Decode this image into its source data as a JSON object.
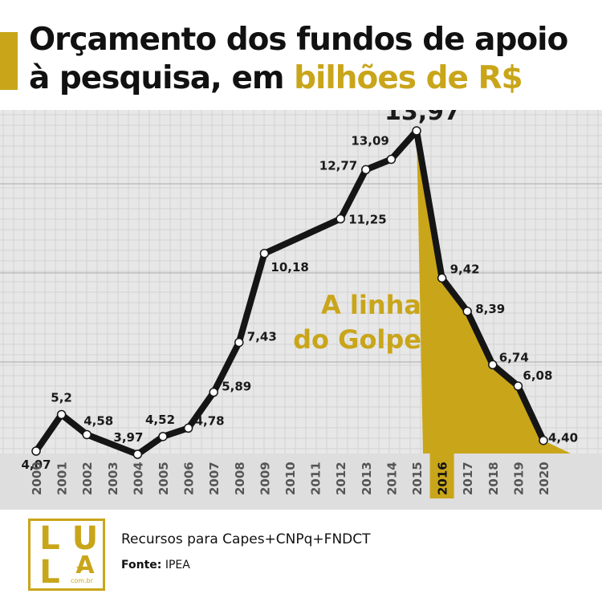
{
  "colors": {
    "accent": "#c9a51a",
    "line": "#151515",
    "grid_bg": "#e7e7e7"
  },
  "header": {
    "title_line1": "Orçamento dos fundos de apoio",
    "title_line2_prefix": "à pesquisa, em ",
    "title_line2_highlight": "bilhões de R$"
  },
  "chart_data": {
    "type": "line",
    "title": "Orçamento dos fundos de apoio à pesquisa, em bilhões de R$",
    "x": [
      "2000",
      "2001",
      "2002",
      "2003",
      "2004",
      "2005",
      "2006",
      "2007",
      "2008",
      "2009",
      "2010",
      "2011",
      "2012",
      "2013",
      "2014",
      "2015",
      "2016",
      "2017",
      "2018",
      "2019",
      "2020"
    ],
    "points": [
      {
        "x": "2000",
        "y": 4.07,
        "label": "4,07"
      },
      {
        "x": "2001",
        "y": 5.2,
        "label": "5,2"
      },
      {
        "x": "2002",
        "y": 4.58,
        "label": "4,58"
      },
      {
        "x": "2004",
        "y": 3.97,
        "label": "3,97"
      },
      {
        "x": "2005",
        "y": 4.52,
        "label": "4,52"
      },
      {
        "x": "2006",
        "y": 4.78,
        "label": "4,78"
      },
      {
        "x": "2007",
        "y": 5.89,
        "label": "5,89"
      },
      {
        "x": "2008",
        "y": 7.43,
        "label": "7,43"
      },
      {
        "x": "2009",
        "y": 10.18,
        "label": "10,18"
      },
      {
        "x": "2012",
        "y": 11.25,
        "label": "11,25"
      },
      {
        "x": "2013",
        "y": 12.77,
        "label": "12,77"
      },
      {
        "x": "2014",
        "y": 13.09,
        "label": "13,09"
      },
      {
        "x": "2015",
        "y": 13.97,
        "label": "13,97"
      },
      {
        "x": "2016",
        "y": 9.42,
        "label": "9,42"
      },
      {
        "x": "2017",
        "y": 8.39,
        "label": "8,39"
      },
      {
        "x": "2018",
        "y": 6.74,
        "label": "6,74"
      },
      {
        "x": "2019",
        "y": 6.08,
        "label": "6,08"
      },
      {
        "x": "2020",
        "y": 4.4,
        "label": "4,40"
      }
    ],
    "highlight_year": "2016",
    "annotation": {
      "line1": "A linha",
      "line2": "do Golpe"
    },
    "grid": true
  },
  "footer": {
    "note": "Recursos para Capes+CNPq+FNDCT",
    "source_label": "Fonte:",
    "source_value": " IPEA",
    "logo": {
      "letters": [
        "L",
        "U",
        "L",
        "A"
      ],
      "star": "★",
      "domain": "com.br"
    }
  }
}
